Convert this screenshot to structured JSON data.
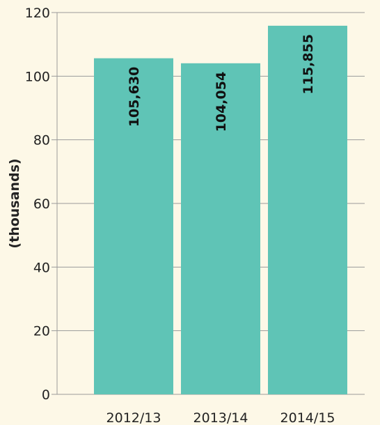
{
  "chart_data": {
    "type": "bar",
    "categories": [
      "2012/13",
      "2013/14",
      "2014/15"
    ],
    "values": [
      105.63,
      104.054,
      115.855
    ],
    "data_labels": [
      "105,630",
      "104,054",
      "115,855"
    ],
    "title": "",
    "xlabel": "",
    "ylabel": "(thousands)",
    "ylim": [
      0,
      120
    ],
    "yticks": [
      0,
      20,
      40,
      60,
      80,
      100,
      120
    ],
    "grid": true,
    "colors": {
      "bar": "#5fc4b6",
      "grid": "#9a9a9a",
      "background": "#fdf8e7"
    }
  }
}
